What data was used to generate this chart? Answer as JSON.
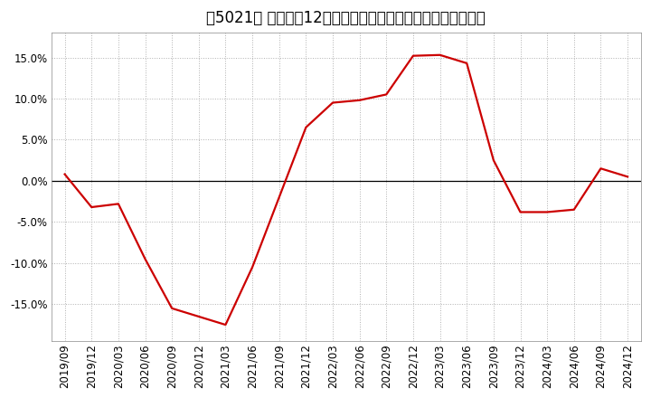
{
  "title": "［5021］ 売上高の12か月移動合計の対前年同期増減率の推移",
  "x_labels": [
    "2019/09",
    "2019/12",
    "2020/03",
    "2020/06",
    "2020/09",
    "2020/12",
    "2021/03",
    "2021/06",
    "2021/09",
    "2021/12",
    "2022/03",
    "2022/06",
    "2022/09",
    "2022/12",
    "2023/03",
    "2023/06",
    "2023/09",
    "2023/12",
    "2024/03",
    "2024/06",
    "2024/09",
    "2024/12"
  ],
  "y_values": [
    0.008,
    -0.032,
    -0.028,
    -0.095,
    -0.155,
    -0.165,
    -0.175,
    -0.105,
    -0.02,
    0.065,
    0.095,
    0.098,
    0.105,
    0.152,
    0.153,
    0.143,
    0.025,
    -0.038,
    -0.038,
    -0.035,
    0.015,
    0.005
  ],
  "line_color": "#cc0000",
  "background_color": "#ffffff",
  "plot_bg_color": "#ffffff",
  "grid_color": "#b0b0b0",
  "ylim": [
    -0.195,
    0.18
  ],
  "yticks": [
    -0.15,
    -0.1,
    -0.05,
    0.0,
    0.05,
    0.1,
    0.15
  ],
  "title_fontsize": 12,
  "tick_fontsize": 8.5
}
